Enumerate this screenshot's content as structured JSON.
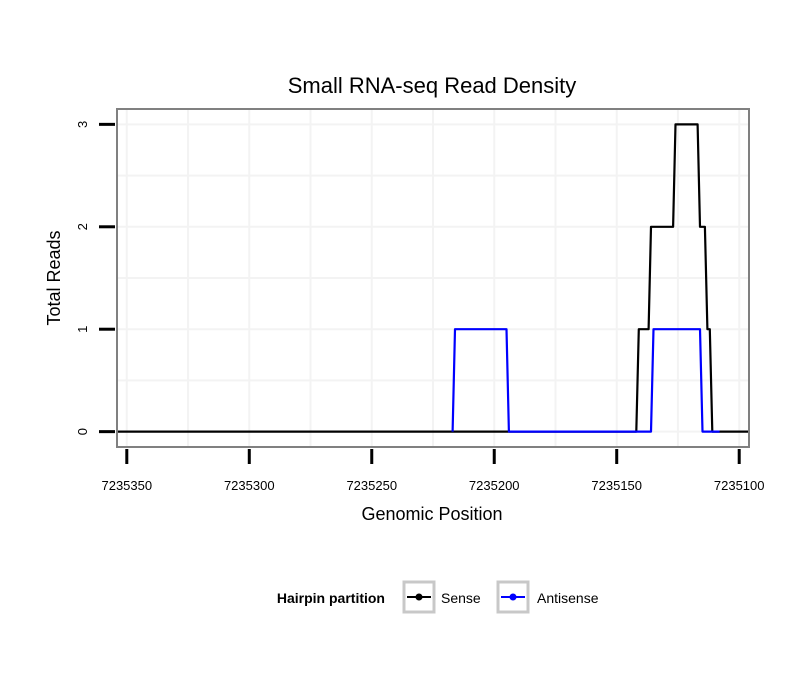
{
  "chart_data": {
    "type": "line",
    "title": "Small RNA-seq Read Density",
    "xlabel": "Genomic Position",
    "ylabel": "Total Reads",
    "x_reversed": true,
    "xlim": [
      7235354,
      7235096
    ],
    "ylim": [
      -0.15,
      3.15
    ],
    "x_ticks": [
      7235350,
      7235300,
      7235250,
      7235200,
      7235150,
      7235100
    ],
    "x_tick_labels": [
      "7235350",
      "7235300",
      "7235250",
      "7235200",
      "7235150",
      "7235100"
    ],
    "y_ticks": [
      0,
      1,
      2,
      3
    ],
    "y_tick_labels": [
      "0",
      "1",
      "2",
      "3"
    ],
    "legend": {
      "title": "Hairpin partition",
      "position": "bottom"
    },
    "series": [
      {
        "name": "Sense",
        "color": "#000000",
        "x": [
          7235354,
          7235142,
          7235141,
          7235137,
          7235136,
          7235127,
          7235126,
          7235117,
          7235116,
          7235114,
          7235113,
          7235112,
          7235111,
          7235096
        ],
        "y": [
          0,
          0,
          1,
          1,
          2,
          2,
          3,
          3,
          2,
          2,
          1,
          1,
          0,
          0
        ]
      },
      {
        "name": "Antisense",
        "color": "#0000ff",
        "x": [
          7235217,
          7235216,
          7235195,
          7235194,
          7235136,
          7235135,
          7235116,
          7235115,
          7235108
        ],
        "y": [
          0,
          1,
          1,
          0,
          0,
          1,
          1,
          0,
          0
        ]
      }
    ]
  }
}
